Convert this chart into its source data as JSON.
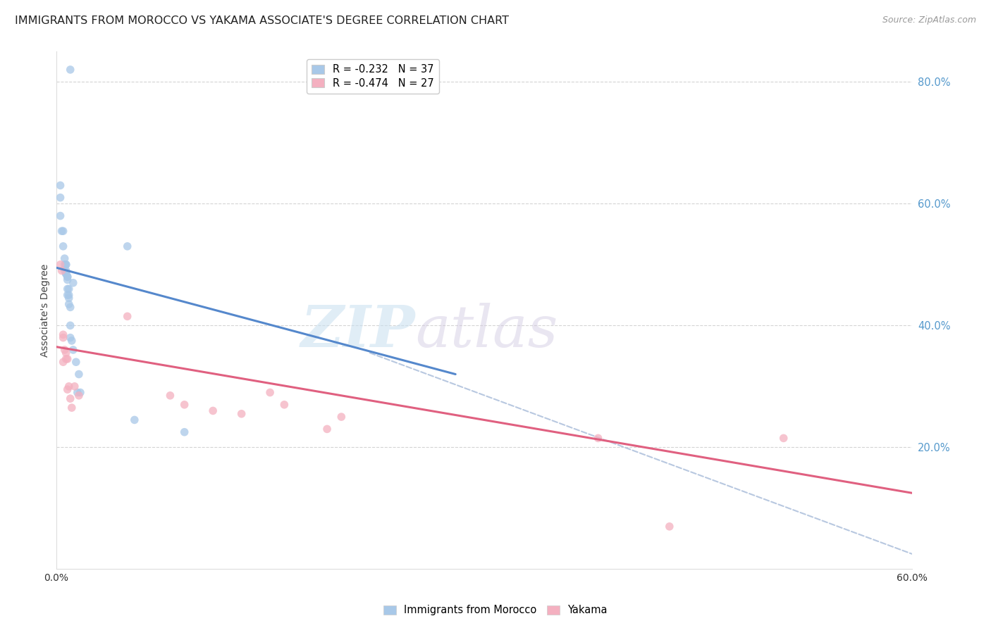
{
  "title": "IMMIGRANTS FROM MOROCCO VS YAKAMA ASSOCIATE'S DEGREE CORRELATION CHART",
  "source": "Source: ZipAtlas.com",
  "ylabel": "Associate's Degree",
  "xlim": [
    0.0,
    0.6
  ],
  "ylim": [
    0.0,
    0.85
  ],
  "yticks": [
    0.2,
    0.4,
    0.6,
    0.8
  ],
  "ytick_labels": [
    "20.0%",
    "40.0%",
    "60.0%",
    "80.0%"
  ],
  "watermark_zip": "ZIP",
  "watermark_atlas": "atlas",
  "legend_entries": [
    {
      "label": "R = -0.232   N = 37",
      "color": "#a8c8e8"
    },
    {
      "label": "R = -0.474   N = 27",
      "color": "#f4b0c0"
    }
  ],
  "blue_scatter_x": [
    0.01,
    0.003,
    0.003,
    0.003,
    0.004,
    0.005,
    0.005,
    0.006,
    0.006,
    0.007,
    0.007,
    0.007,
    0.007,
    0.008,
    0.008,
    0.008,
    0.008,
    0.008,
    0.009,
    0.009,
    0.009,
    0.01,
    0.01,
    0.01,
    0.011,
    0.012,
    0.014,
    0.016,
    0.017,
    0.05,
    0.055,
    0.09,
    0.006,
    0.007,
    0.009,
    0.012,
    0.015
  ],
  "blue_scatter_y": [
    0.82,
    0.63,
    0.61,
    0.58,
    0.555,
    0.555,
    0.53,
    0.51,
    0.5,
    0.5,
    0.5,
    0.49,
    0.485,
    0.48,
    0.48,
    0.475,
    0.46,
    0.45,
    0.45,
    0.445,
    0.435,
    0.43,
    0.4,
    0.38,
    0.375,
    0.36,
    0.34,
    0.32,
    0.29,
    0.53,
    0.245,
    0.225,
    0.49,
    0.485,
    0.46,
    0.47,
    0.29
  ],
  "pink_scatter_x": [
    0.003,
    0.004,
    0.005,
    0.005,
    0.006,
    0.007,
    0.007,
    0.008,
    0.008,
    0.009,
    0.01,
    0.011,
    0.013,
    0.016,
    0.05,
    0.08,
    0.09,
    0.11,
    0.13,
    0.15,
    0.16,
    0.19,
    0.2,
    0.38,
    0.43,
    0.51,
    0.005
  ],
  "pink_scatter_y": [
    0.5,
    0.49,
    0.385,
    0.38,
    0.36,
    0.355,
    0.345,
    0.345,
    0.295,
    0.3,
    0.28,
    0.265,
    0.3,
    0.285,
    0.415,
    0.285,
    0.27,
    0.26,
    0.255,
    0.29,
    0.27,
    0.23,
    0.25,
    0.215,
    0.07,
    0.215,
    0.34
  ],
  "blue_line_x0": 0.0,
  "blue_line_y0": 0.495,
  "blue_line_x1": 0.28,
  "blue_line_y1": 0.32,
  "pink_line_x0": 0.0,
  "pink_line_y0": 0.365,
  "pink_line_x1": 0.6,
  "pink_line_y1": 0.125,
  "dashed_line_x0": 0.22,
  "dashed_line_y0": 0.355,
  "dashed_line_x1": 0.6,
  "dashed_line_y1": 0.025,
  "blue_color": "#a8c8e8",
  "blue_line_color": "#5588cc",
  "pink_color": "#f4b0c0",
  "pink_line_color": "#e06080",
  "dashed_color": "#b8c8e0",
  "background": "#ffffff",
  "grid_color": "#d0d0d0",
  "title_fontsize": 11.5,
  "source_fontsize": 9,
  "tick_color": "#5599cc",
  "marker_size": 70
}
